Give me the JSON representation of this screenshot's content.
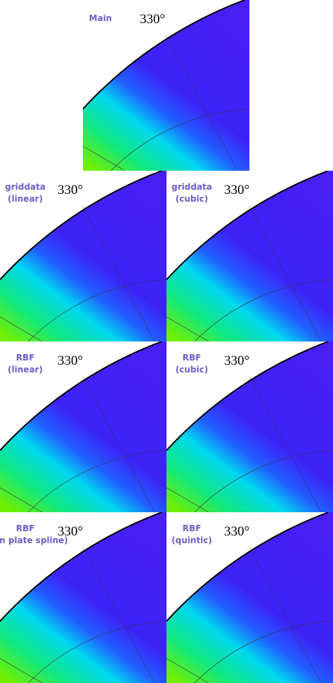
{
  "panels": [
    {
      "label": [
        "Main"
      ],
      "angle": "330°"
    },
    {
      "label": [
        "griddata",
        "(linear)"
      ],
      "angle": "330°"
    },
    {
      "label": [
        "griddata",
        "(cubic)"
      ],
      "angle": "330°"
    },
    {
      "label": [
        "RBF",
        "(linear)"
      ],
      "angle": "330°"
    },
    {
      "label": [
        "RBF",
        "(cubic)"
      ],
      "angle": "330°"
    },
    {
      "label": [
        "RBF",
        "(thin plate spline)"
      ],
      "angle": "330°"
    },
    {
      "label": [
        "RBF",
        "(quintic)"
      ],
      "angle": "330°"
    }
  ]
}
